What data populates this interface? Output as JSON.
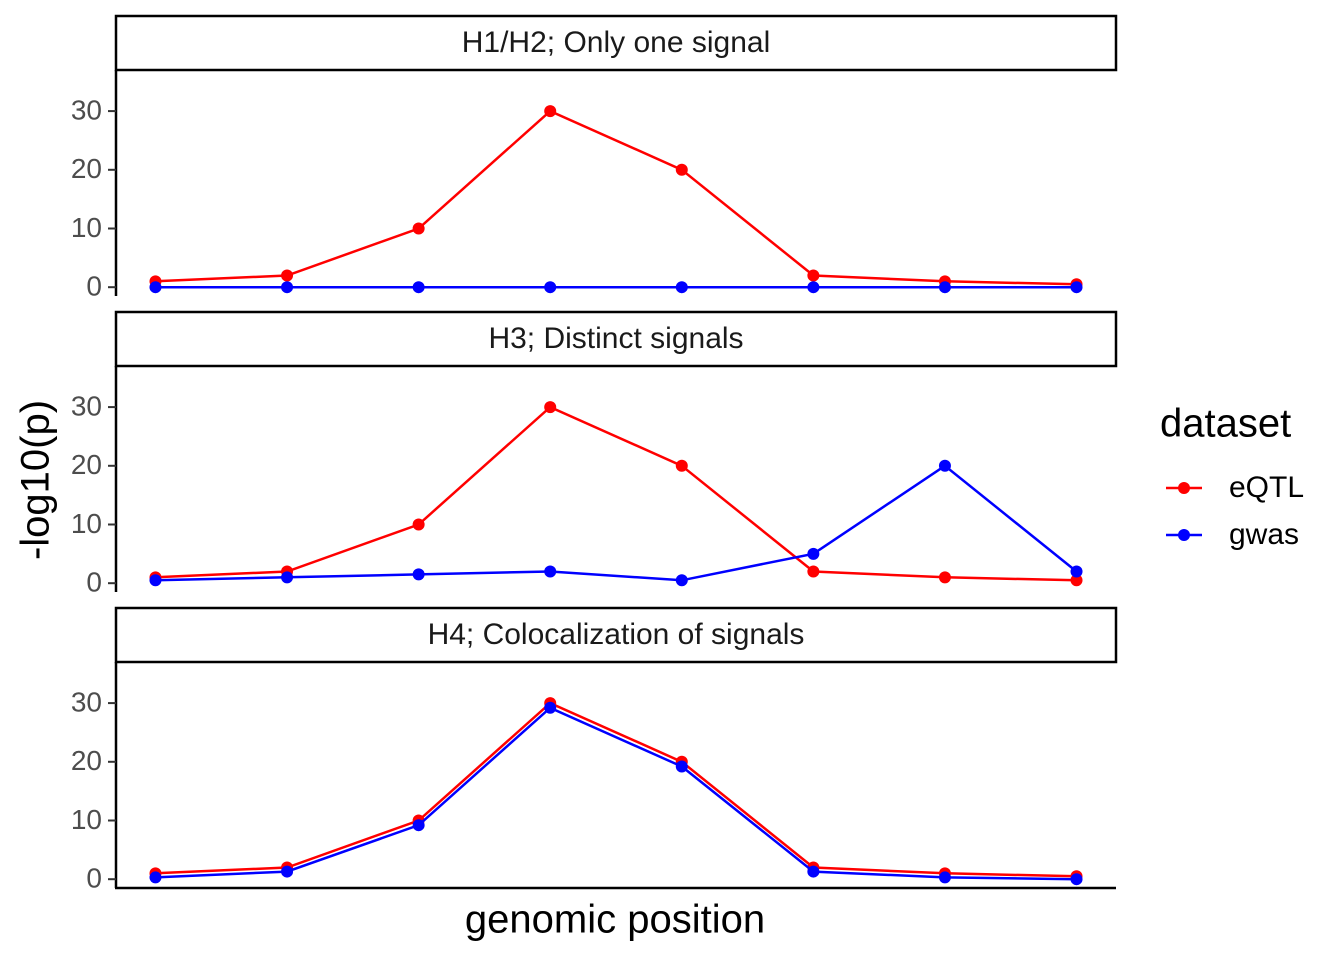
{
  "chart_data": {
    "type": "line",
    "xlabel": "genomic position",
    "ylabel": "-log10(p)",
    "ylim": [
      -1.5,
      37
    ],
    "yticks": [
      0,
      10,
      20,
      30
    ],
    "x": [
      1,
      2,
      3,
      4,
      5,
      6,
      7,
      8
    ],
    "legend": {
      "title": "dataset",
      "position": "right",
      "entries": [
        {
          "name": "eQTL",
          "color": "#ff0000"
        },
        {
          "name": "gwas",
          "color": "#0000ff"
        }
      ]
    },
    "grid": false,
    "panels": [
      {
        "title": "H1/H2; Only one signal",
        "series": [
          {
            "name": "eQTL",
            "color": "#ff0000",
            "values": [
              1,
              2,
              10,
              30,
              20,
              2,
              1,
              0.5
            ]
          },
          {
            "name": "gwas",
            "color": "#0000ff",
            "values": [
              0,
              0,
              0,
              0,
              0,
              0,
              0,
              0
            ]
          }
        ]
      },
      {
        "title": "H3; Distinct signals",
        "series": [
          {
            "name": "eQTL",
            "color": "#ff0000",
            "values": [
              1,
              2,
              10,
              30,
              20,
              2,
              1,
              0.5
            ]
          },
          {
            "name": "gwas",
            "color": "#0000ff",
            "values": [
              0.5,
              1,
              1.5,
              2,
              0.5,
              5,
              20,
              2
            ]
          }
        ]
      },
      {
        "title": "H4; Colocalization of signals",
        "series": [
          {
            "name": "eQTL",
            "color": "#ff0000",
            "values": [
              1,
              2,
              10,
              30,
              20,
              2,
              1,
              0.5
            ]
          },
          {
            "name": "gwas",
            "color": "#0000ff",
            "values": [
              0.3,
              1.3,
              9.2,
              29.2,
              19.2,
              1.3,
              0.3,
              0
            ]
          }
        ]
      }
    ]
  }
}
